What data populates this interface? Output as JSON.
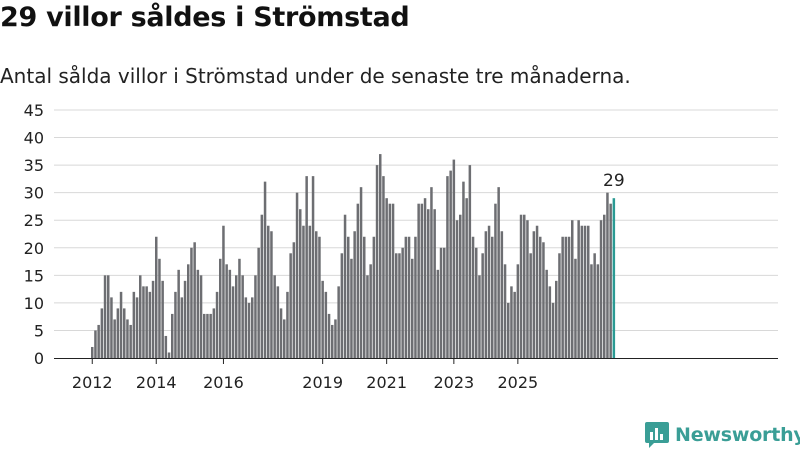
{
  "header": {
    "title": "29 villor såldes i Strömstad",
    "subtitle": "Antal sålda villor i Strömstad under de senaste tre månaderna."
  },
  "brand": {
    "name": "Newsworthy"
  },
  "colors": {
    "bar": "#6d6e72",
    "highlight": "#2a9a93",
    "grid": "#d8d8d8",
    "brand": "#3a9e96"
  },
  "chart_data": {
    "type": "bar",
    "yticks": [
      "0",
      "5",
      "10",
      "15",
      "20",
      "25",
      "30",
      "35",
      "40",
      "45"
    ],
    "ylim": [
      0,
      45
    ],
    "xticks": [
      {
        "label": "2012",
        "index": 0
      },
      {
        "label": "2014",
        "index": 20
      },
      {
        "label": "2016",
        "index": 41
      },
      {
        "label": "2019",
        "index": 72
      },
      {
        "label": "2021",
        "index": 92
      },
      {
        "label": "2023",
        "index": 113
      },
      {
        "label": "2025",
        "index": 133
      }
    ],
    "highlight_label": "29",
    "values": [
      2,
      5,
      6,
      9,
      15,
      15,
      11,
      7,
      9,
      12,
      9,
      7,
      6,
      12,
      11,
      15,
      13,
      13,
      12,
      14,
      22,
      18,
      14,
      4,
      1,
      8,
      12,
      16,
      11,
      14,
      17,
      20,
      21,
      16,
      15,
      8,
      8,
      8,
      9,
      12,
      18,
      24,
      17,
      16,
      13,
      15,
      18,
      15,
      11,
      10,
      11,
      15,
      20,
      26,
      32,
      24,
      23,
      15,
      13,
      9,
      7,
      12,
      19,
      21,
      30,
      27,
      24,
      33,
      24,
      33,
      23,
      22,
      14,
      12,
      8,
      6,
      7,
      13,
      19,
      26,
      22,
      18,
      23,
      28,
      31,
      22,
      15,
      17,
      22,
      35,
      37,
      33,
      29,
      28,
      28,
      19,
      19,
      20,
      22,
      22,
      18,
      22,
      28,
      28,
      29,
      27,
      31,
      27,
      16,
      20,
      20,
      33,
      34,
      36,
      25,
      26,
      32,
      29,
      35,
      22,
      20,
      15,
      19,
      23,
      24,
      22,
      28,
      31,
      23,
      17,
      10,
      13,
      12,
      17,
      26,
      26,
      25,
      19,
      23,
      24,
      22,
      21,
      16,
      13,
      10,
      14,
      19,
      22,
      22,
      22,
      25,
      18,
      25,
      24,
      24,
      24,
      17,
      19,
      17,
      25,
      26,
      30,
      28,
      29
    ]
  }
}
